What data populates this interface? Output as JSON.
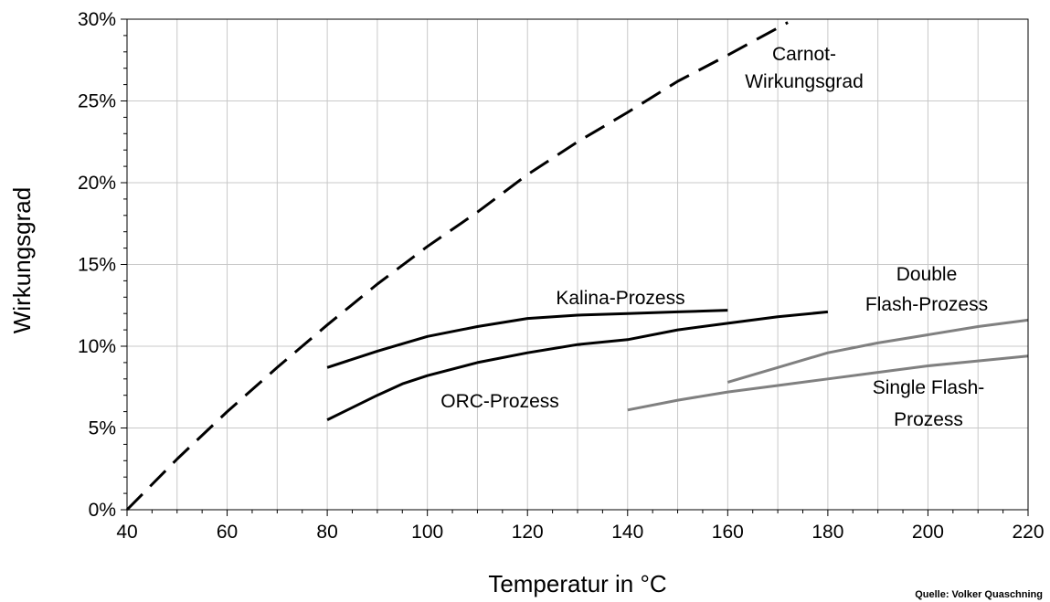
{
  "chart_data": {
    "type": "line",
    "title": "",
    "xlabel": "Temperatur in °C",
    "ylabel": "Wirkungsgrad",
    "xlim": [
      40,
      220
    ],
    "ylim": [
      0,
      30
    ],
    "grid": true,
    "x_ticks": [
      40,
      60,
      80,
      100,
      120,
      140,
      160,
      180,
      200,
      220
    ],
    "x_tick_labels": [
      "40",
      "60",
      "80",
      "100",
      "120",
      "140",
      "160",
      "180",
      "200",
      "220"
    ],
    "y_ticks": [
      0,
      5,
      10,
      15,
      20,
      25,
      30
    ],
    "y_tick_labels": [
      "0%",
      "5%",
      "10%",
      "15%",
      "20%",
      "25%",
      "30%"
    ],
    "source": "Quelle: Volker Quaschning",
    "series": [
      {
        "key": "carnot",
        "label_lines": [
          "Carnot-",
          "Wirkungsgrad"
        ],
        "color": "#000000",
        "dashed": true,
        "x": [
          40,
          50,
          60,
          70,
          80,
          90,
          100,
          110,
          120,
          130,
          140,
          150,
          160,
          172
        ],
        "y": [
          0,
          3.1,
          6.0,
          8.7,
          11.3,
          13.8,
          16.1,
          18.2,
          20.5,
          22.5,
          24.3,
          26.2,
          27.8,
          29.8
        ]
      },
      {
        "key": "kalina",
        "label_lines": [
          "Kalina-Prozess"
        ],
        "color": "#000000",
        "dashed": false,
        "x": [
          80,
          90,
          100,
          110,
          120,
          130,
          140,
          150,
          160
        ],
        "y": [
          8.7,
          9.7,
          10.6,
          11.2,
          11.7,
          11.9,
          12.0,
          12.1,
          12.2
        ]
      },
      {
        "key": "orc",
        "label_lines": [
          "ORC-Prozess"
        ],
        "color": "#000000",
        "dashed": false,
        "x": [
          80,
          90,
          95,
          100,
          110,
          120,
          130,
          140,
          150,
          160,
          170,
          180
        ],
        "y": [
          5.5,
          7.0,
          7.7,
          8.2,
          9.0,
          9.6,
          10.1,
          10.4,
          11.0,
          11.4,
          11.8,
          12.1
        ]
      },
      {
        "key": "double_flash",
        "label_lines": [
          "Double",
          "Flash-Prozess"
        ],
        "color": "#808080",
        "dashed": false,
        "x": [
          160,
          170,
          180,
          190,
          200,
          210,
          220
        ],
        "y": [
          7.8,
          8.7,
          9.6,
          10.2,
          10.7,
          11.2,
          11.6
        ]
      },
      {
        "key": "single_flash",
        "label_lines": [
          "Single Flash-",
          "Prozess"
        ],
        "color": "#808080",
        "dashed": false,
        "x": [
          140,
          150,
          160,
          170,
          180,
          190,
          200,
          210,
          220
        ],
        "y": [
          6.1,
          6.7,
          7.2,
          7.6,
          8.0,
          8.4,
          8.8,
          9.1,
          9.4
        ]
      }
    ]
  }
}
